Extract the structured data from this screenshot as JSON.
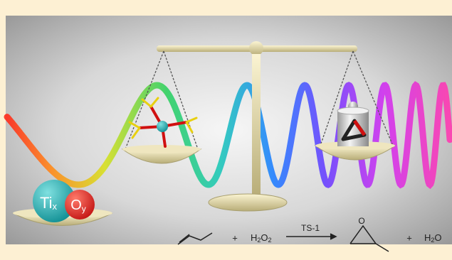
{
  "sphere_labels": {
    "ti": {
      "base": "Ti",
      "sub": "x"
    },
    "o": {
      "base": "O",
      "sub": "y"
    }
  },
  "reaction": {
    "plus_1": "+",
    "oxidant": {
      "h": "H",
      "sub1": "2",
      "o": "O",
      "sub2": "2"
    },
    "arrow_label": "TS-1",
    "plus_2": "+",
    "water": {
      "h": "H",
      "sub": "2",
      "o": "O"
    }
  }
}
